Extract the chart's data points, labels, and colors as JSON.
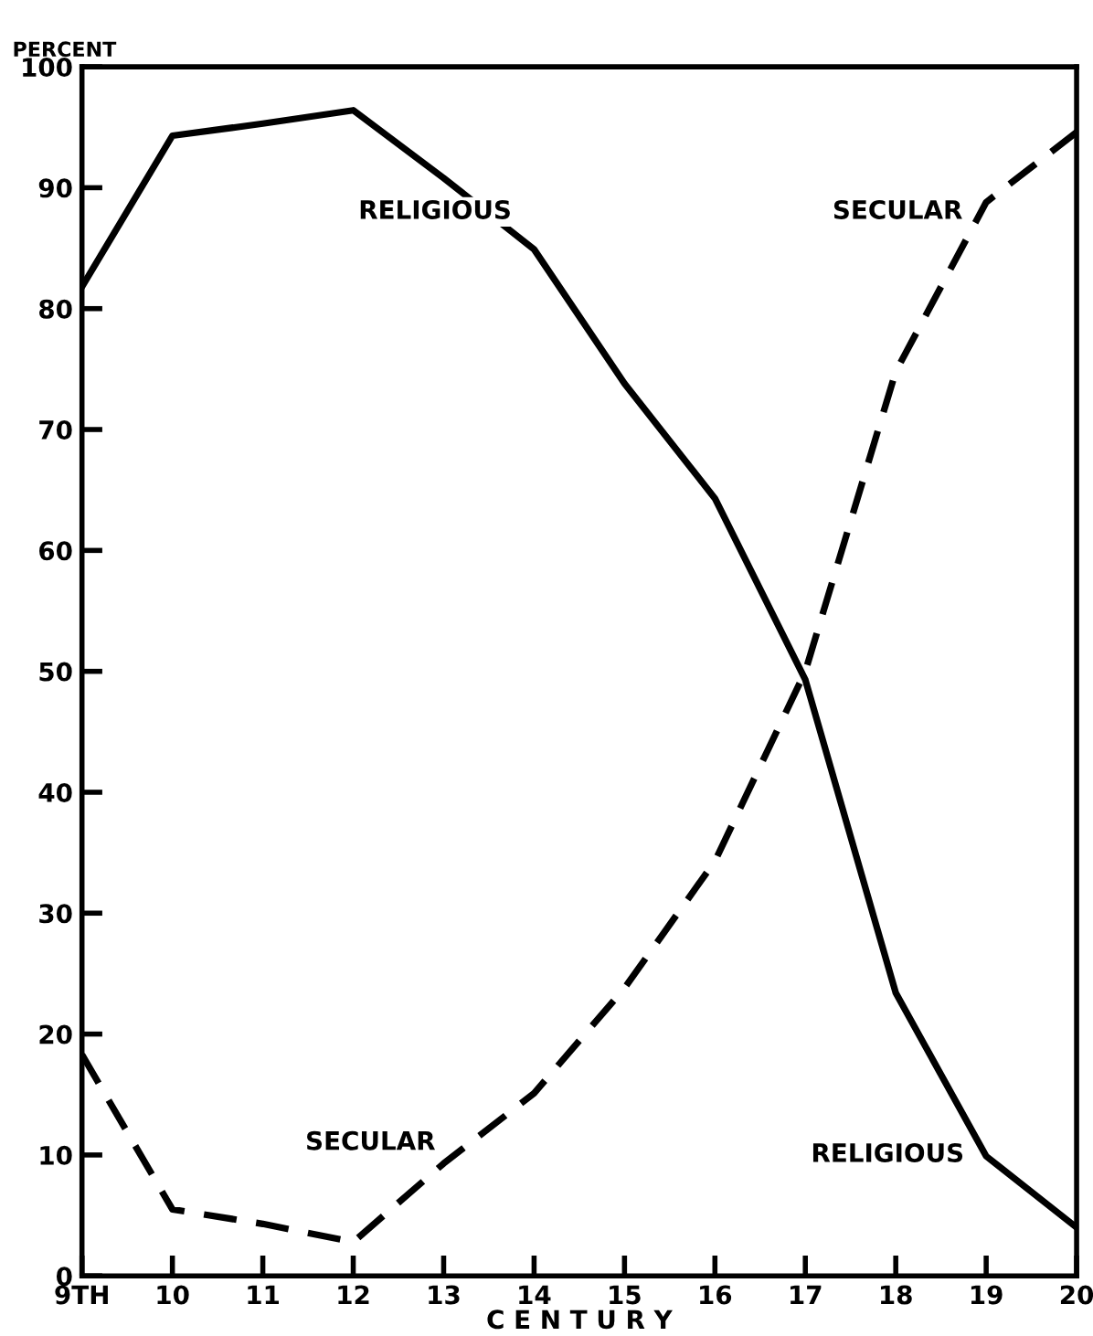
{
  "chart_data": {
    "type": "line",
    "ylabel": "PERCENT",
    "xlabel": "C E N T U R Y",
    "categories": [
      "9TH",
      "10",
      "11",
      "12",
      "13",
      "14",
      "15",
      "16",
      "17",
      "18",
      "19",
      "20"
    ],
    "series": [
      {
        "color": "#000000",
        "line_style": "solid",
        "values": [
          81.8,
          94.3,
          95.3,
          96.4,
          90.8,
          84.9,
          73.8,
          64.3,
          49.3,
          23.4,
          9.9,
          4.0
        ]
      },
      {
        "color": "#000000",
        "line_style": "dashed",
        "values": [
          18.3,
          5.5,
          4.3,
          2.8,
          9.3,
          15.1,
          23.8,
          34.3,
          50.0,
          74.8,
          88.8,
          94.6
        ]
      }
    ],
    "annotations": [
      "RELIGIOUS",
      "SECULAR",
      "SECULAR",
      "RELIGIOUS"
    ],
    "ylim": [
      0,
      100
    ],
    "yticks": [
      0,
      10,
      20,
      30,
      40,
      50,
      60,
      70,
      80,
      90,
      100
    ],
    "grid": false,
    "legend": false,
    "marker": "none"
  }
}
